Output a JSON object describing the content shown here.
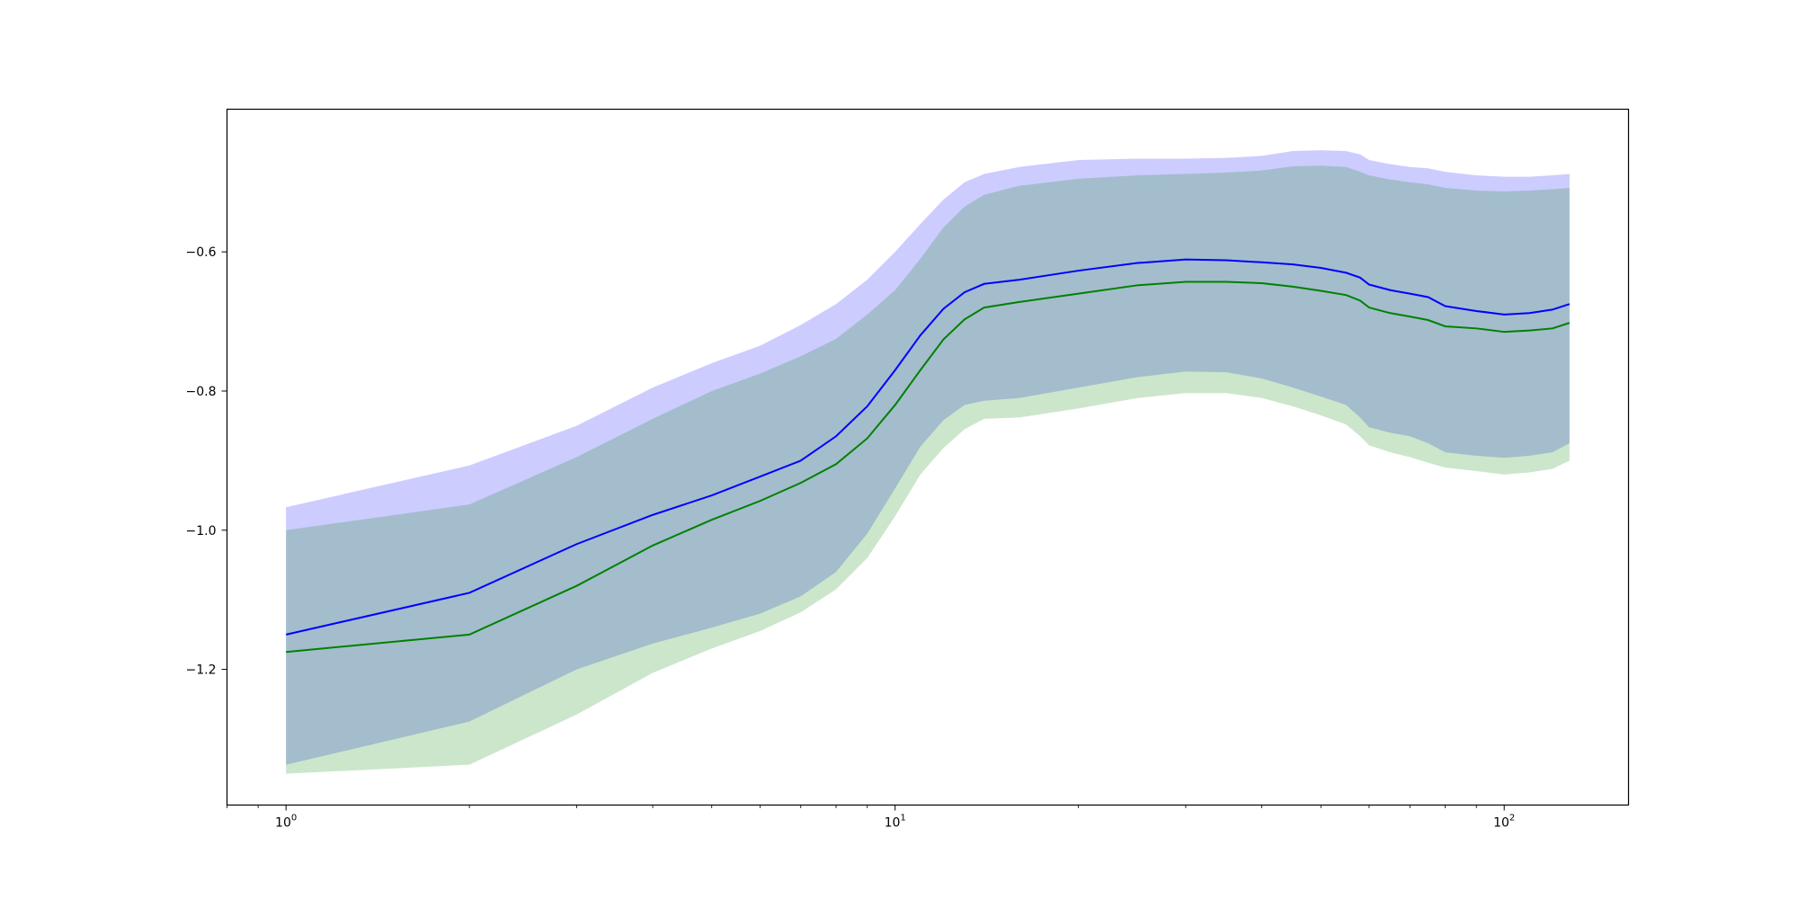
{
  "chart_data": {
    "type": "line",
    "title": "",
    "xlabel": "",
    "ylabel": "",
    "xscale": "log",
    "xlim": [
      0.8,
      160
    ],
    "ylim": [
      -1.395,
      -0.395
    ],
    "grid": false,
    "x_ticks": [
      {
        "value": 1,
        "base": "10",
        "exp": "0"
      },
      {
        "value": 10,
        "base": "10",
        "exp": "1"
      },
      {
        "value": 100,
        "base": "10",
        "exp": "2"
      }
    ],
    "y_ticks": [
      {
        "value": -0.6,
        "label": "−0.6"
      },
      {
        "value": -0.8,
        "label": "−0.8"
      },
      {
        "value": -1.0,
        "label": "−1.0"
      },
      {
        "value": -1.2,
        "label": "−1.2"
      }
    ],
    "series": [
      {
        "color": "#0000ff",
        "band_color": "#0000ff",
        "band_opacity": 0.2,
        "x": [
          1,
          2,
          3,
          4,
          5,
          6,
          7,
          8,
          9,
          10,
          11,
          12,
          13,
          14,
          16,
          20,
          25,
          30,
          35,
          40,
          45,
          50,
          55,
          58,
          60,
          65,
          70,
          75,
          80,
          90,
          100,
          110,
          120,
          128
        ],
        "y": [
          -1.15,
          -1.09,
          -1.02,
          -0.978,
          -0.95,
          -0.923,
          -0.9,
          -0.865,
          -0.822,
          -0.77,
          -0.72,
          -0.682,
          -0.658,
          -0.646,
          -0.64,
          -0.627,
          -0.616,
          -0.611,
          -0.612,
          -0.615,
          -0.618,
          -0.623,
          -0.63,
          -0.637,
          -0.647,
          -0.655,
          -0.66,
          -0.665,
          -0.678,
          -0.685,
          -0.69,
          -0.688,
          -0.683,
          -0.675
        ],
        "upper": [
          -0.967,
          -0.907,
          -0.85,
          -0.795,
          -0.76,
          -0.735,
          -0.705,
          -0.675,
          -0.64,
          -0.6,
          -0.56,
          -0.525,
          -0.5,
          -0.488,
          -0.478,
          -0.468,
          -0.466,
          -0.466,
          -0.465,
          -0.462,
          -0.455,
          -0.454,
          -0.455,
          -0.46,
          -0.468,
          -0.474,
          -0.478,
          -0.48,
          -0.485,
          -0.49,
          -0.492,
          -0.492,
          -0.49,
          -0.488
        ],
        "lower": [
          -1.337,
          -1.275,
          -1.2,
          -1.163,
          -1.14,
          -1.12,
          -1.095,
          -1.06,
          -1.005,
          -0.94,
          -0.88,
          -0.842,
          -0.82,
          -0.814,
          -0.81,
          -0.795,
          -0.78,
          -0.772,
          -0.773,
          -0.782,
          -0.795,
          -0.808,
          -0.82,
          -0.838,
          -0.852,
          -0.86,
          -0.865,
          -0.875,
          -0.888,
          -0.893,
          -0.896,
          -0.893,
          -0.888,
          -0.875
        ]
      },
      {
        "color": "#008000",
        "band_color": "#008000",
        "band_opacity": 0.2,
        "x": [
          1,
          2,
          3,
          4,
          5,
          6,
          7,
          8,
          9,
          10,
          11,
          12,
          13,
          14,
          16,
          20,
          25,
          30,
          35,
          40,
          45,
          50,
          55,
          58,
          60,
          65,
          70,
          75,
          80,
          90,
          100,
          110,
          120,
          128
        ],
        "y": [
          -1.175,
          -1.15,
          -1.08,
          -1.022,
          -0.985,
          -0.958,
          -0.932,
          -0.905,
          -0.868,
          -0.82,
          -0.77,
          -0.726,
          -0.697,
          -0.68,
          -0.672,
          -0.66,
          -0.648,
          -0.643,
          -0.643,
          -0.645,
          -0.65,
          -0.656,
          -0.662,
          -0.67,
          -0.68,
          -0.688,
          -0.693,
          -0.698,
          -0.707,
          -0.71,
          -0.715,
          -0.713,
          -0.71,
          -0.702
        ],
        "upper": [
          -1.0,
          -0.963,
          -0.895,
          -0.84,
          -0.8,
          -0.775,
          -0.75,
          -0.725,
          -0.69,
          -0.655,
          -0.61,
          -0.565,
          -0.535,
          -0.518,
          -0.505,
          -0.495,
          -0.49,
          -0.488,
          -0.486,
          -0.483,
          -0.477,
          -0.476,
          -0.478,
          -0.485,
          -0.49,
          -0.496,
          -0.5,
          -0.503,
          -0.508,
          -0.512,
          -0.513,
          -0.512,
          -0.51,
          -0.508
        ],
        "lower": [
          -1.35,
          -1.337,
          -1.265,
          -1.205,
          -1.17,
          -1.145,
          -1.118,
          -1.085,
          -1.04,
          -0.98,
          -0.92,
          -0.882,
          -0.855,
          -0.84,
          -0.838,
          -0.825,
          -0.81,
          -0.803,
          -0.803,
          -0.81,
          -0.822,
          -0.835,
          -0.848,
          -0.865,
          -0.878,
          -0.888,
          -0.895,
          -0.903,
          -0.91,
          -0.915,
          -0.92,
          -0.917,
          -0.912,
          -0.9
        ]
      }
    ]
  }
}
